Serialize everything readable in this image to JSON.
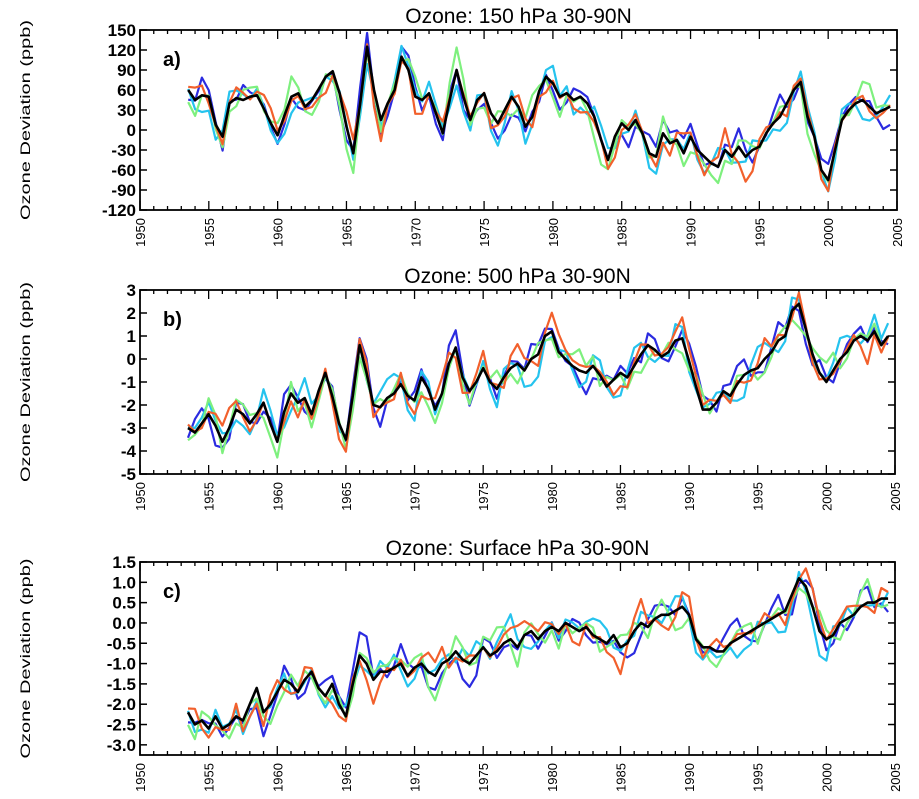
{
  "chart_data": [
    {
      "type": "line",
      "panel_label": "a)",
      "title": "Ozone: 150 hPa 30-90N",
      "ylabel": "Ozone Deviation (ppb)",
      "xlabel": "",
      "xlim": [
        1950,
        2005
      ],
      "ylim": [
        -120,
        150
      ],
      "yticks": [
        150,
        120,
        90,
        60,
        30,
        0,
        -30,
        -60,
        -90,
        -120
      ],
      "xticks": [
        1950,
        1955,
        1960,
        1965,
        1970,
        1975,
        1980,
        1985,
        1990,
        1995,
        2000,
        2005
      ],
      "series": [
        {
          "color": "#000000",
          "x": [
            1953.5,
            1954.0,
            1954.5,
            1955.0,
            1955.5,
            1956.0,
            1956.5,
            1957.0,
            1957.5,
            1958.0,
            1958.5,
            1959.0,
            1959.5,
            1960.0,
            1960.5,
            1961.0,
            1961.5,
            1962.0,
            1962.5,
            1963.0,
            1963.5,
            1964.0,
            1964.5,
            1965.0,
            1965.5,
            1966.0,
            1966.5,
            1967.0,
            1967.5,
            1968.0,
            1968.5,
            1969.0,
            1969.5,
            1970.0,
            1970.5,
            1971.0,
            1971.5,
            1972.0,
            1972.5,
            1973.0,
            1973.5,
            1974.0,
            1974.5,
            1975.0,
            1975.5,
            1976.0,
            1976.5,
            1977.0,
            1977.5,
            1978.0,
            1978.5,
            1979.0,
            1979.5,
            1980.0,
            1980.5,
            1981.0,
            1981.5,
            1982.0,
            1982.5,
            1983.0,
            1983.5,
            1984.0,
            1984.5,
            1985.0,
            1985.5,
            1986.0,
            1986.5,
            1987.0,
            1987.5,
            1988.0,
            1988.5,
            1989.0,
            1989.5,
            1990.0,
            1990.5,
            1991.0,
            1991.5,
            1992.0,
            1992.5,
            1993.0,
            1993.5,
            1994.0,
            1994.5,
            1995.0,
            1995.5,
            1996.0,
            1996.5,
            1997.0,
            1997.5,
            1998.0,
            1998.5,
            1999.0,
            1999.5,
            2000.0,
            2000.5,
            2001.0,
            2001.5,
            2002.0,
            2002.5,
            2003.0,
            2003.5,
            2004.0,
            2004.5
          ],
          "y": [
            60,
            45,
            52,
            50,
            8,
            -10,
            40,
            48,
            45,
            50,
            52,
            32,
            10,
            -8,
            22,
            50,
            55,
            35,
            45,
            62,
            80,
            88,
            55,
            5,
            -35,
            40,
            125,
            60,
            15,
            40,
            60,
            110,
            90,
            50,
            45,
            55,
            25,
            -5,
            45,
            90,
            50,
            15,
            45,
            55,
            25,
            10,
            30,
            50,
            35,
            5,
            20,
            58,
            80,
            70,
            50,
            55,
            45,
            50,
            40,
            20,
            -15,
            -45,
            -10,
            10,
            0,
            15,
            -5,
            -35,
            -40,
            -5,
            -20,
            -15,
            -35,
            -10,
            -30,
            -40,
            -50,
            -55,
            -30,
            -40,
            -25,
            -40,
            -30,
            -25,
            -5,
            10,
            20,
            40,
            60,
            72,
            20,
            -10,
            -60,
            -75,
            -30,
            15,
            30,
            40,
            45,
            35,
            25,
            30,
            35
          ]
        }
      ]
    },
    {
      "type": "line",
      "panel_label": "b)",
      "title": "Ozone: 500 hPa 30-90N",
      "ylabel": "Ozone Deviation (ppb)",
      "xlabel": "",
      "xlim": [
        1950,
        2005
      ],
      "ylim": [
        -5,
        3
      ],
      "yticks": [
        3,
        2,
        1,
        0,
        -1,
        -2,
        -3,
        -4,
        -5
      ],
      "xticks": [
        1950,
        1955,
        1960,
        1965,
        1970,
        1975,
        1980,
        1985,
        1990,
        1995,
        2000,
        2005
      ],
      "series": [
        {
          "color": "#000000",
          "x": [
            1953.5,
            1954.0,
            1954.5,
            1955.0,
            1955.5,
            1956.0,
            1956.5,
            1957.0,
            1957.5,
            1958.0,
            1958.5,
            1959.0,
            1959.5,
            1960.0,
            1960.5,
            1961.0,
            1961.5,
            1962.0,
            1962.5,
            1963.0,
            1963.5,
            1964.0,
            1964.5,
            1965.0,
            1965.5,
            1966.0,
            1966.5,
            1967.0,
            1967.5,
            1968.0,
            1968.5,
            1969.0,
            1969.5,
            1970.0,
            1970.5,
            1971.0,
            1971.5,
            1972.0,
            1972.5,
            1973.0,
            1973.5,
            1974.0,
            1974.5,
            1975.0,
            1975.5,
            1976.0,
            1976.5,
            1977.0,
            1977.5,
            1978.0,
            1978.5,
            1979.0,
            1979.5,
            1980.0,
            1980.5,
            1981.0,
            1981.5,
            1982.0,
            1982.5,
            1983.0,
            1983.5,
            1984.0,
            1984.5,
            1985.0,
            1985.5,
            1986.0,
            1986.5,
            1987.0,
            1987.5,
            1988.0,
            1988.5,
            1989.0,
            1989.5,
            1990.0,
            1990.5,
            1991.0,
            1991.5,
            1992.0,
            1992.5,
            1993.0,
            1993.5,
            1994.0,
            1994.5,
            1995.0,
            1995.5,
            1996.0,
            1996.5,
            1997.0,
            1997.5,
            1998.0,
            1998.5,
            1999.0,
            1999.5,
            2000.0,
            2000.5,
            2001.0,
            2001.5,
            2002.0,
            2002.5,
            2003.0,
            2003.5,
            2004.0,
            2004.5
          ],
          "y": [
            -3.0,
            -3.2,
            -2.8,
            -2.4,
            -2.9,
            -3.6,
            -3.0,
            -2.2,
            -2.4,
            -2.8,
            -2.4,
            -1.9,
            -2.8,
            -3.6,
            -2.3,
            -1.5,
            -1.9,
            -1.7,
            -2.4,
            -1.4,
            -0.6,
            -1.6,
            -2.8,
            -3.5,
            -1.6,
            0.6,
            -0.6,
            -2.0,
            -2.1,
            -1.7,
            -1.5,
            -1.1,
            -1.6,
            -1.8,
            -0.8,
            -1.3,
            -2.2,
            -1.5,
            -0.2,
            0.5,
            -0.8,
            -1.4,
            -1.0,
            -0.4,
            -1.0,
            -1.3,
            -0.8,
            -0.4,
            -0.2,
            -0.5,
            0.0,
            0.2,
            1.0,
            1.2,
            0.3,
            0.0,
            -0.3,
            -0.5,
            -0.6,
            -0.3,
            -0.7,
            -1.2,
            -0.9,
            -0.6,
            -0.8,
            -0.3,
            0.2,
            0.6,
            0.4,
            0.1,
            0.3,
            0.8,
            0.9,
            -0.1,
            -1.2,
            -2.2,
            -2.2,
            -1.9,
            -1.4,
            -1.6,
            -1.1,
            -0.7,
            -0.5,
            -0.4,
            0.0,
            0.3,
            0.8,
            1.0,
            2.1,
            2.4,
            1.3,
            0.2,
            -0.6,
            -1.0,
            -0.5,
            0.0,
            0.3,
            0.8,
            1.0,
            0.8,
            1.2,
            0.6,
            1.0
          ]
        }
      ]
    },
    {
      "type": "line",
      "panel_label": "c)",
      "title": "Ozone: Surface hPa 30-90N",
      "ylabel": "Ozone Deviation (ppb)",
      "xlabel": "",
      "xlim": [
        1950,
        2005
      ],
      "ylim": [
        -3.25,
        1.5
      ],
      "yticks": [
        1.5,
        1.0,
        0.5,
        0.0,
        -0.5,
        -1.0,
        -1.5,
        -2.0,
        -2.5,
        -3.0
      ],
      "xticks": [
        1950,
        1955,
        1960,
        1965,
        1970,
        1975,
        1980,
        1985,
        1990,
        1995,
        2000,
        2005
      ],
      "series": [
        {
          "color": "#000000",
          "x": [
            1953.5,
            1954.0,
            1954.5,
            1955.0,
            1955.5,
            1956.0,
            1956.5,
            1957.0,
            1957.5,
            1958.0,
            1958.5,
            1959.0,
            1959.5,
            1960.0,
            1960.5,
            1961.0,
            1961.5,
            1962.0,
            1962.5,
            1963.0,
            1963.5,
            1964.0,
            1964.5,
            1965.0,
            1965.5,
            1966.0,
            1966.5,
            1967.0,
            1967.5,
            1968.0,
            1968.5,
            1969.0,
            1969.5,
            1970.0,
            1970.5,
            1971.0,
            1971.5,
            1972.0,
            1972.5,
            1973.0,
            1973.5,
            1974.0,
            1974.5,
            1975.0,
            1975.5,
            1976.0,
            1976.5,
            1977.0,
            1977.5,
            1978.0,
            1978.5,
            1979.0,
            1979.5,
            1980.0,
            1980.5,
            1981.0,
            1981.5,
            1982.0,
            1982.5,
            1983.0,
            1983.5,
            1984.0,
            1984.5,
            1985.0,
            1985.5,
            1986.0,
            1986.5,
            1987.0,
            1987.5,
            1988.0,
            1988.5,
            1989.0,
            1989.5,
            1990.0,
            1990.5,
            1991.0,
            1991.5,
            1992.0,
            1992.5,
            1993.0,
            1993.5,
            1994.0,
            1994.5,
            1995.0,
            1995.5,
            1996.0,
            1996.5,
            1997.0,
            1997.5,
            1998.0,
            1998.5,
            1999.0,
            1999.5,
            2000.0,
            2000.5,
            2001.0,
            2001.5,
            2002.0,
            2002.5,
            2003.0,
            2003.5,
            2004.0,
            2004.5
          ],
          "y": [
            -2.2,
            -2.5,
            -2.4,
            -2.6,
            -2.3,
            -2.6,
            -2.5,
            -2.3,
            -2.4,
            -2.0,
            -1.6,
            -2.2,
            -2.0,
            -1.7,
            -1.4,
            -1.5,
            -1.7,
            -1.4,
            -1.2,
            -1.6,
            -1.8,
            -1.5,
            -2.0,
            -2.3,
            -1.5,
            -0.8,
            -1.0,
            -1.4,
            -1.2,
            -1.2,
            -1.1,
            -1.0,
            -1.3,
            -1.1,
            -1.0,
            -1.2,
            -1.3,
            -1.0,
            -0.9,
            -0.7,
            -0.9,
            -1.0,
            -0.8,
            -0.6,
            -0.8,
            -0.7,
            -0.5,
            -0.4,
            -0.6,
            -0.3,
            -0.2,
            -0.4,
            -0.2,
            -0.1,
            -0.2,
            0.0,
            -0.1,
            -0.2,
            -0.1,
            -0.3,
            -0.4,
            -0.5,
            -0.3,
            -0.6,
            -0.5,
            -0.2,
            0.0,
            -0.1,
            0.1,
            0.2,
            0.2,
            0.3,
            0.4,
            0.2,
            -0.4,
            -0.6,
            -0.6,
            -0.7,
            -0.7,
            -0.5,
            -0.4,
            -0.3,
            -0.2,
            -0.1,
            0.0,
            0.1,
            0.2,
            0.3,
            0.7,
            1.1,
            0.9,
            0.4,
            -0.2,
            -0.4,
            -0.3,
            0.0,
            0.1,
            0.2,
            0.4,
            0.5,
            0.5,
            0.6,
            0.6
          ]
        }
      ]
    }
  ]
}
